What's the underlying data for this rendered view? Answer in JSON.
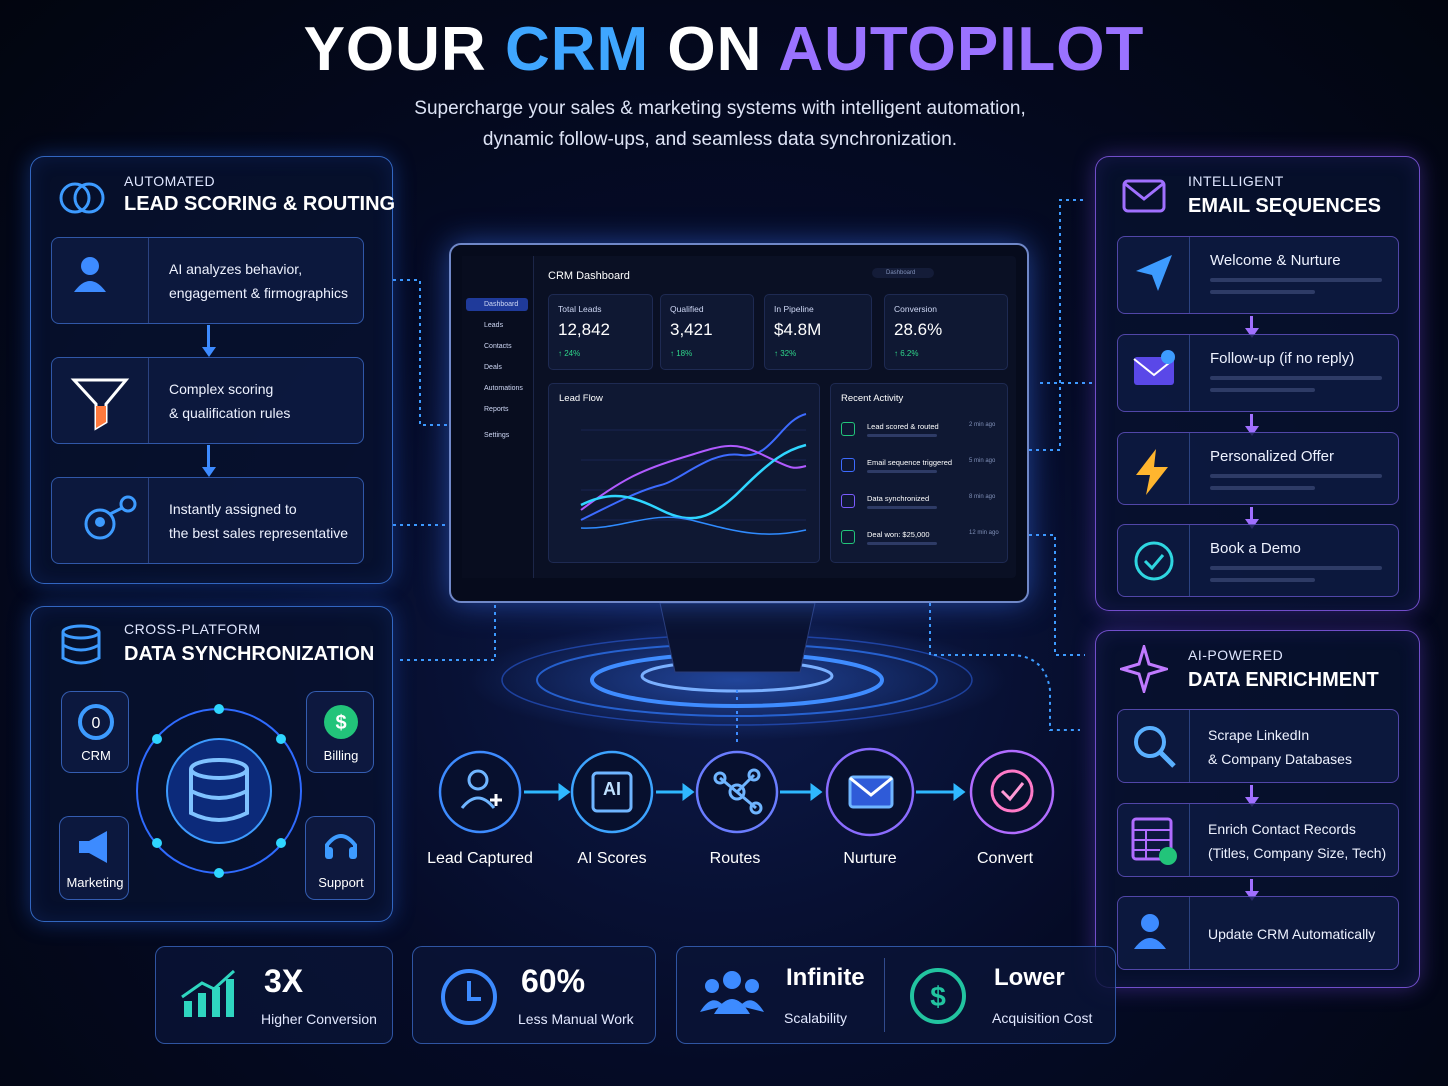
{
  "header": {
    "title": [
      "YOUR",
      "CRM",
      "ON",
      "AUTOPILOT"
    ],
    "subtitle": [
      "Supercharge your sales & marketing systems with intelligent automation,",
      "dynamic follow-ups, and seamless data synchronization."
    ]
  },
  "lead_scoring": {
    "kicker": "AUTOMATED",
    "title": "LEAD SCORING & ROUTING",
    "steps": [
      [
        "AI analyzes behavior,",
        "engagement & firmographics"
      ],
      [
        "Complex scoring",
        "& qualification rules"
      ],
      [
        "Instantly assigned to",
        "the best sales representative"
      ]
    ]
  },
  "data_sync": {
    "kicker": "CROSS-PLATFORM",
    "title": "DATA SYNCHRONIZATION",
    "nodes": [
      "CRM",
      "Billing",
      "Marketing",
      "Support"
    ]
  },
  "dashboard": {
    "title": "CRM Dashboard",
    "search": "Dashboard",
    "nav": [
      "Dashboard",
      "Leads",
      "Contacts",
      "Deals",
      "Automations",
      "Reports",
      "Settings"
    ],
    "stats": [
      {
        "label": "Total Leads",
        "value": "12,842",
        "change": "↑ 24%"
      },
      {
        "label": "Qualified",
        "value": "3,421",
        "change": "↑ 18%"
      },
      {
        "label": "In Pipeline",
        "value": "$4.8M",
        "change": "↑ 32%"
      },
      {
        "label": "Conversion",
        "value": "28.6%",
        "change": "↑ 6.2%"
      }
    ],
    "chart_title": "Lead Flow",
    "activity_title": "Recent Activity",
    "activity": [
      {
        "text": "Lead scored & routed",
        "time": "2 min ago"
      },
      {
        "text": "Email sequence triggered",
        "time": "5 min ago"
      },
      {
        "text": "Data synchronized",
        "time": "8 min ago"
      },
      {
        "text": "Deal won: $25,000",
        "time": "12 min ago"
      }
    ]
  },
  "flow": {
    "chip": "AI",
    "steps": [
      "Lead Captured",
      "AI Scores",
      "Routes",
      "Nurture",
      "Convert"
    ]
  },
  "email_sequences": {
    "kicker": "INTELLIGENT",
    "title": "EMAIL SEQUENCES",
    "steps": [
      "Welcome & Nurture",
      "Follow-up (if no reply)",
      "Personalized Offer",
      "Book a Demo"
    ]
  },
  "enrichment": {
    "kicker": "AI-POWERED",
    "title": "DATA ENRICHMENT",
    "steps": [
      [
        "Scrape LinkedIn",
        "& Company Databases"
      ],
      [
        "Enrich Contact Records",
        "(Titles, Company Size, Tech)"
      ],
      [
        "Update CRM Automatically"
      ]
    ]
  },
  "benefits": [
    {
      "value": "3X",
      "label": "Higher Conversion"
    },
    {
      "value": "60%",
      "label": "Less Manual Work"
    },
    {
      "value": "Infinite",
      "label": "Scalability"
    },
    {
      "value": "Lower",
      "label": "Acquisition Cost"
    }
  ]
}
